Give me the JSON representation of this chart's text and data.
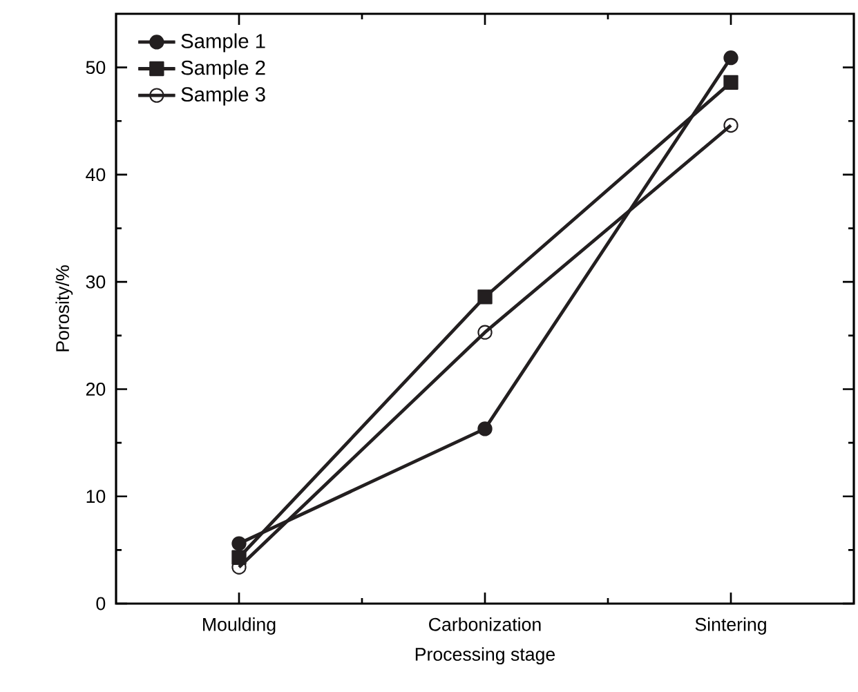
{
  "chart_data": {
    "type": "line",
    "xlabel": "Processing stage",
    "ylabel": "Porosity/%",
    "categories": [
      "Moulding",
      "Carbonization",
      "Sintering"
    ],
    "series": [
      {
        "name": "Sample 1",
        "color": "#231f20",
        "marker": "circle",
        "values": [
          5.6,
          16.3,
          50.9
        ]
      },
      {
        "name": "Sample 2",
        "color": "#231f20",
        "marker": "square",
        "values": [
          4.3,
          28.6,
          48.6
        ]
      },
      {
        "name": "Sample 3",
        "color": "#231f20",
        "marker": "open circle",
        "values": [
          3.4,
          25.3,
          44.6
        ]
      }
    ],
    "ylim": [
      0,
      55
    ],
    "yticks": [
      0,
      10,
      20,
      30,
      40,
      50
    ],
    "legend": "top left",
    "grid": false,
    "line_style": "solid"
  }
}
